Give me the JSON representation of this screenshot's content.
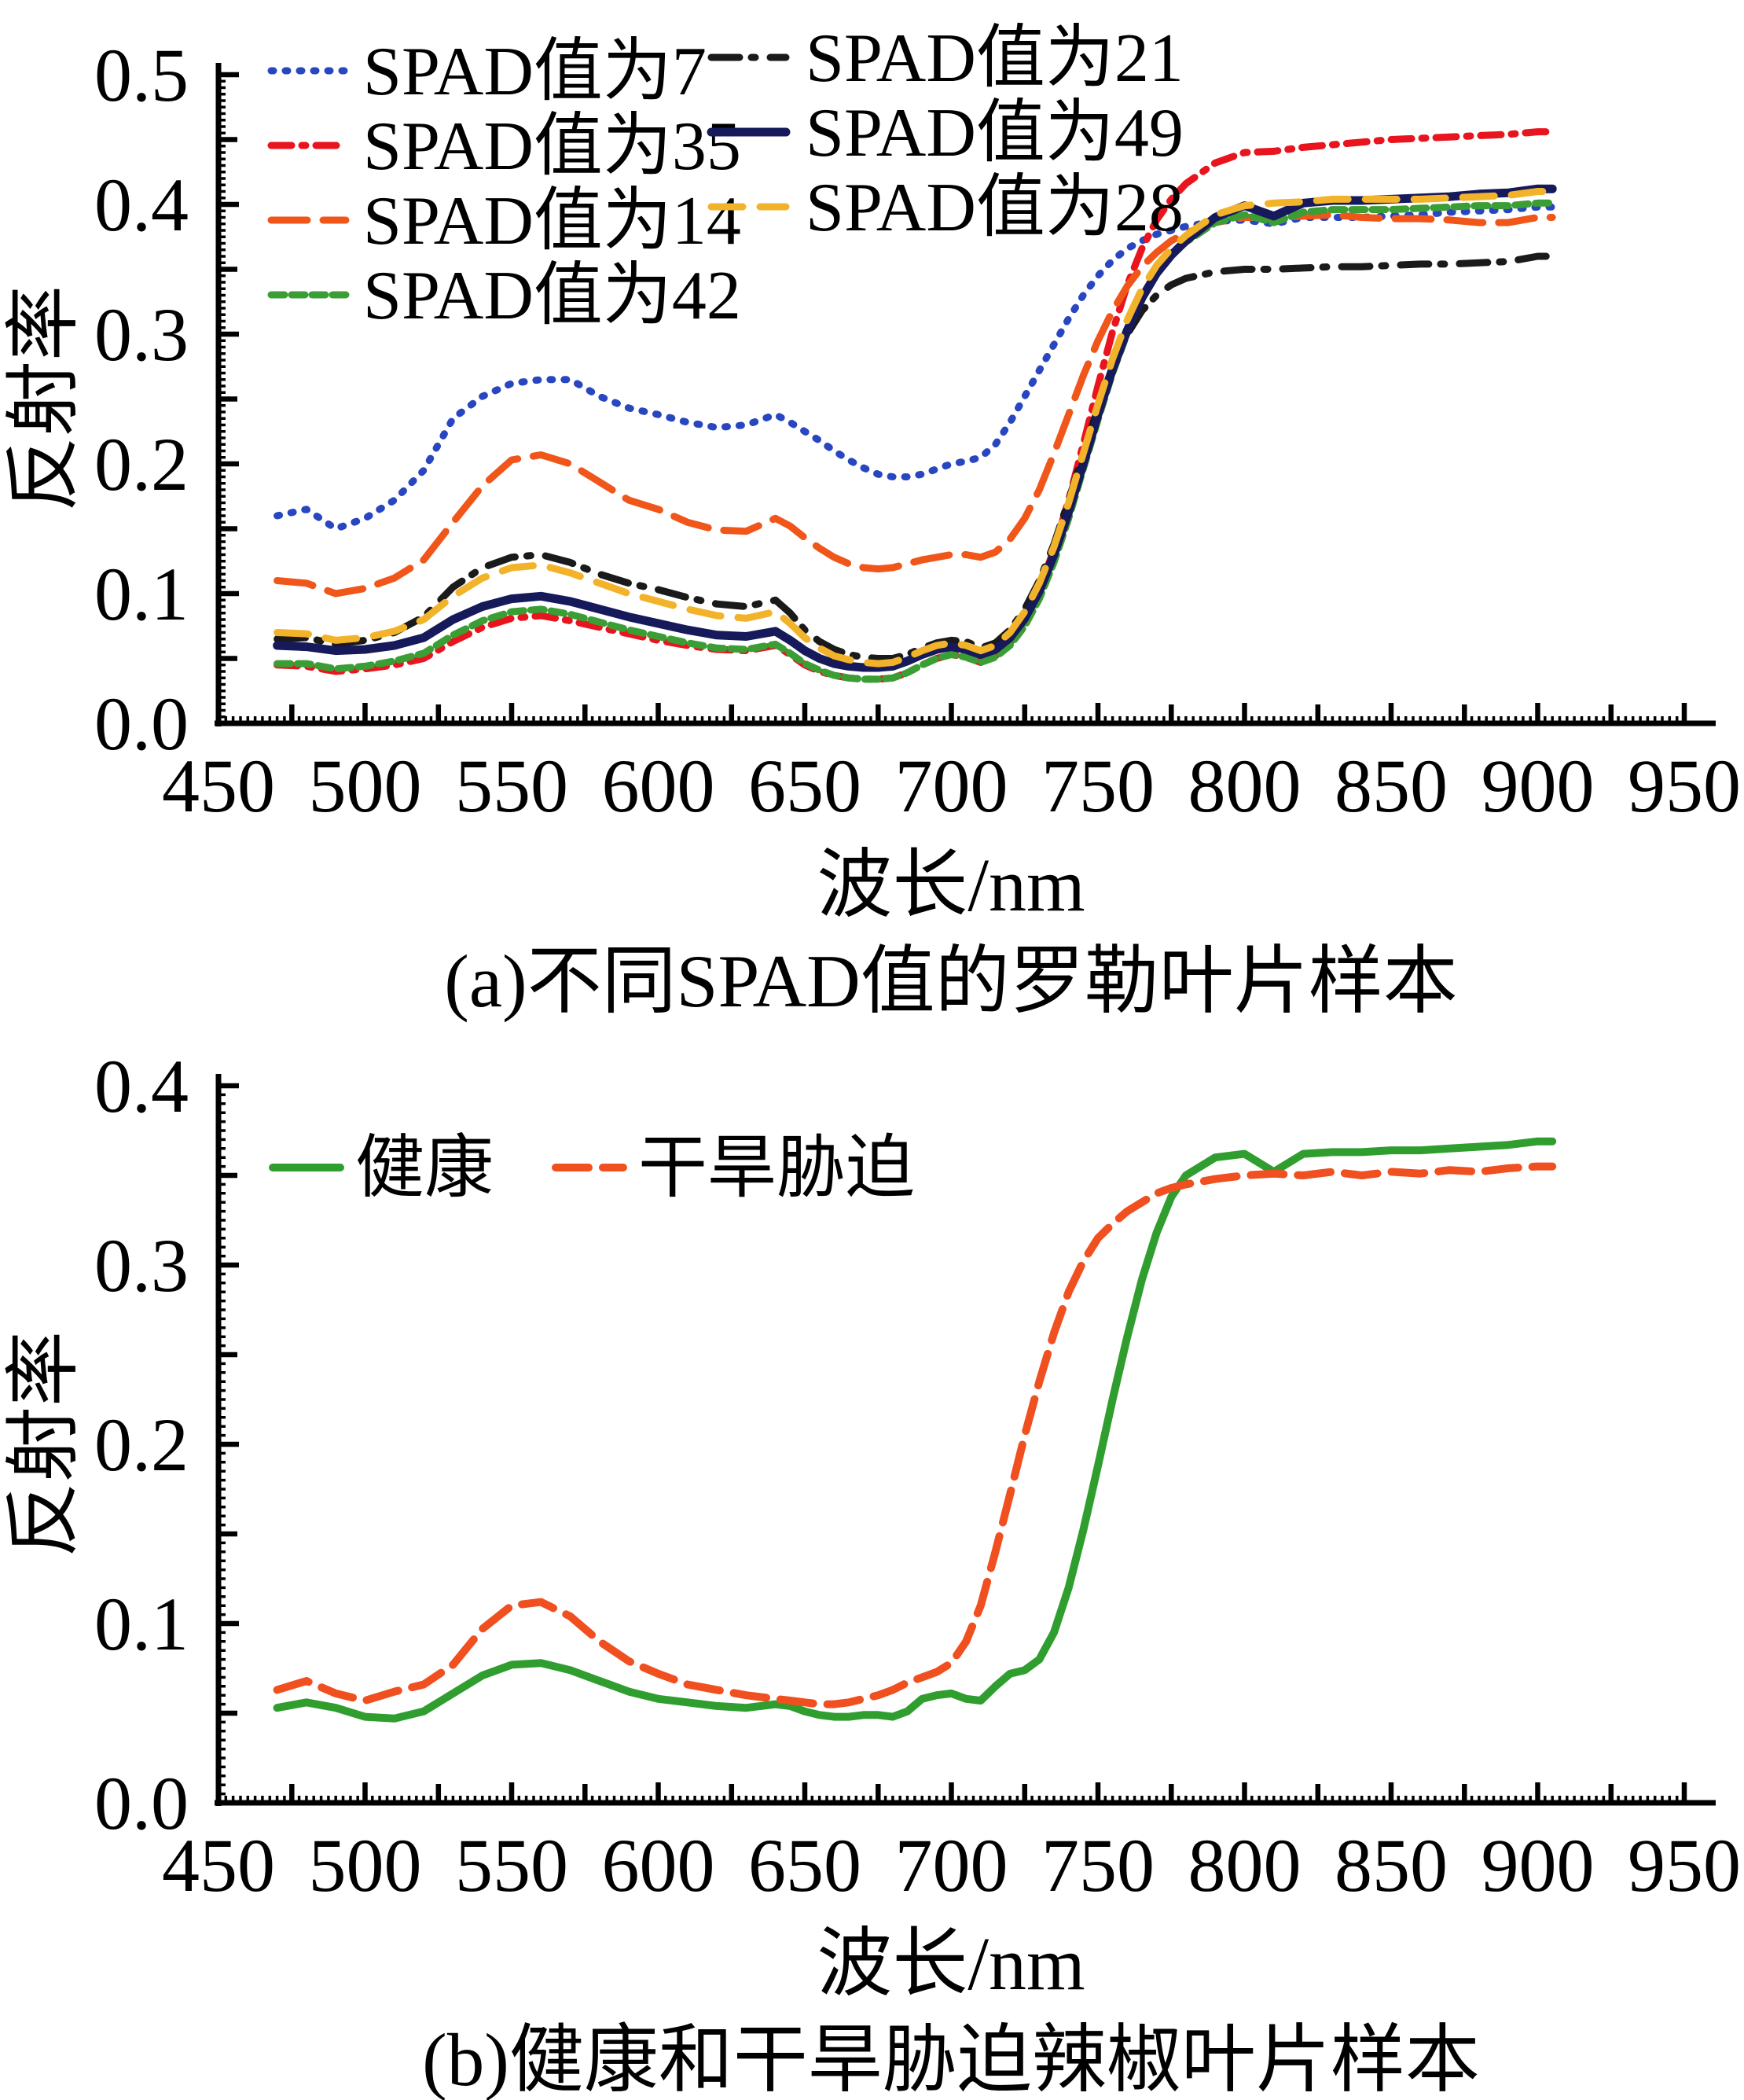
{
  "figure": {
    "background": "#ffffff",
    "axis_color": "#000000"
  },
  "chart_data": [
    {
      "type": "line",
      "title": "(a)不同SPAD值的罗勒叶片样本",
      "caption": "(a)不同SPAD值的罗勒叶片样本",
      "xlabel": "波长/nm",
      "ylabel": "反射率",
      "xlim": [
        450,
        950
      ],
      "ylim": [
        0.0,
        0.5
      ],
      "grid": false,
      "legend_position": "top-left-inside, two columns",
      "x_ticks": [
        450,
        500,
        550,
        600,
        650,
        700,
        750,
        800,
        850,
        900,
        950
      ],
      "y_tick_labels": [
        "0.0",
        "0.1",
        "0.2",
        "0.3",
        "0.4",
        "0.5"
      ],
      "x": [
        470,
        480,
        490,
        500,
        510,
        520,
        530,
        540,
        550,
        560,
        570,
        580,
        590,
        600,
        610,
        620,
        630,
        640,
        645,
        650,
        655,
        660,
        665,
        670,
        675,
        680,
        685,
        690,
        695,
        700,
        705,
        710,
        715,
        720,
        725,
        730,
        735,
        740,
        745,
        750,
        755,
        760,
        765,
        770,
        775,
        780,
        790,
        800,
        810,
        820,
        830,
        840,
        850,
        860,
        870,
        880,
        890,
        900,
        905
      ],
      "series": [
        {
          "name": "SPAD值为7",
          "key": "spad-7",
          "color": "#2846c0",
          "dash": "3 15",
          "width": 9,
          "values": [
            0.16,
            0.165,
            0.15,
            0.158,
            0.172,
            0.195,
            0.235,
            0.252,
            0.262,
            0.265,
            0.265,
            0.252,
            0.243,
            0.238,
            0.232,
            0.228,
            0.23,
            0.238,
            0.232,
            0.225,
            0.218,
            0.21,
            0.203,
            0.197,
            0.192,
            0.19,
            0.19,
            0.192,
            0.196,
            0.2,
            0.202,
            0.205,
            0.215,
            0.232,
            0.252,
            0.272,
            0.292,
            0.312,
            0.33,
            0.345,
            0.357,
            0.366,
            0.372,
            0.377,
            0.38,
            0.383,
            0.387,
            0.388,
            0.385,
            0.39,
            0.39,
            0.39,
            0.391,
            0.392,
            0.394,
            0.395,
            0.396,
            0.398,
            0.398
          ]
        },
        {
          "name": "SPAD值为35",
          "key": "spad-35",
          "color": "#e8141e",
          "dash": "26 13 5 13",
          "width": 9,
          "values": [
            0.045,
            0.044,
            0.04,
            0.042,
            0.045,
            0.05,
            0.063,
            0.074,
            0.081,
            0.083,
            0.079,
            0.074,
            0.069,
            0.064,
            0.06,
            0.057,
            0.056,
            0.06,
            0.053,
            0.045,
            0.04,
            0.037,
            0.035,
            0.034,
            0.034,
            0.035,
            0.039,
            0.045,
            0.05,
            0.053,
            0.051,
            0.047,
            0.052,
            0.062,
            0.079,
            0.103,
            0.134,
            0.172,
            0.215,
            0.26,
            0.302,
            0.338,
            0.366,
            0.388,
            0.404,
            0.416,
            0.432,
            0.44,
            0.441,
            0.444,
            0.446,
            0.448,
            0.45,
            0.451,
            0.452,
            0.453,
            0.454,
            0.456,
            0.456
          ]
        },
        {
          "name": "SPAD值为14",
          "key": "spad-14",
          "color": "#f0561a",
          "dash": "46 20",
          "width": 9,
          "values": [
            0.11,
            0.108,
            0.1,
            0.104,
            0.112,
            0.126,
            0.155,
            0.183,
            0.203,
            0.207,
            0.2,
            0.186,
            0.172,
            0.165,
            0.155,
            0.149,
            0.148,
            0.158,
            0.152,
            0.143,
            0.135,
            0.128,
            0.123,
            0.12,
            0.119,
            0.12,
            0.123,
            0.126,
            0.128,
            0.13,
            0.13,
            0.128,
            0.132,
            0.142,
            0.158,
            0.18,
            0.208,
            0.238,
            0.268,
            0.295,
            0.318,
            0.337,
            0.352,
            0.363,
            0.372,
            0.378,
            0.386,
            0.39,
            0.39,
            0.391,
            0.392,
            0.39,
            0.389,
            0.389,
            0.388,
            0.386,
            0.386,
            0.39,
            0.39
          ]
        },
        {
          "name": "SPAD值为42",
          "key": "spad-42",
          "color": "#3a9e35",
          "dash": "17 9",
          "width": 9,
          "values": [
            0.046,
            0.046,
            0.042,
            0.044,
            0.048,
            0.054,
            0.068,
            0.079,
            0.086,
            0.088,
            0.084,
            0.078,
            0.072,
            0.067,
            0.062,
            0.058,
            0.057,
            0.061,
            0.054,
            0.046,
            0.041,
            0.037,
            0.035,
            0.034,
            0.034,
            0.035,
            0.039,
            0.045,
            0.05,
            0.053,
            0.051,
            0.047,
            0.051,
            0.06,
            0.075,
            0.096,
            0.124,
            0.158,
            0.196,
            0.234,
            0.27,
            0.301,
            0.327,
            0.347,
            0.361,
            0.371,
            0.386,
            0.392,
            0.386,
            0.394,
            0.396,
            0.396,
            0.396,
            0.397,
            0.398,
            0.399,
            0.399,
            0.401,
            0.401
          ]
        },
        {
          "name": "SPAD值为21",
          "key": "spad-21",
          "color": "#1a1a1a",
          "dash": "36 15 5 19",
          "width": 9,
          "values": [
            0.065,
            0.066,
            0.061,
            0.064,
            0.07,
            0.082,
            0.105,
            0.12,
            0.128,
            0.13,
            0.124,
            0.115,
            0.108,
            0.103,
            0.097,
            0.092,
            0.09,
            0.095,
            0.085,
            0.072,
            0.063,
            0.057,
            0.053,
            0.051,
            0.05,
            0.05,
            0.053,
            0.058,
            0.062,
            0.064,
            0.063,
            0.058,
            0.062,
            0.072,
            0.088,
            0.11,
            0.138,
            0.172,
            0.208,
            0.243,
            0.275,
            0.3,
            0.318,
            0.33,
            0.338,
            0.343,
            0.348,
            0.35,
            0.35,
            0.351,
            0.352,
            0.352,
            0.353,
            0.354,
            0.354,
            0.355,
            0.356,
            0.36,
            0.36
          ]
        },
        {
          "name": "SPAD值为49",
          "key": "spad-49",
          "color": "#16195a",
          "dash": "",
          "width": 11,
          "values": [
            0.06,
            0.059,
            0.056,
            0.057,
            0.06,
            0.066,
            0.08,
            0.09,
            0.096,
            0.098,
            0.094,
            0.088,
            0.082,
            0.077,
            0.072,
            0.068,
            0.067,
            0.071,
            0.064,
            0.056,
            0.05,
            0.046,
            0.044,
            0.043,
            0.043,
            0.044,
            0.048,
            0.053,
            0.057,
            0.059,
            0.057,
            0.053,
            0.057,
            0.066,
            0.081,
            0.102,
            0.13,
            0.163,
            0.2,
            0.238,
            0.273,
            0.303,
            0.328,
            0.347,
            0.361,
            0.372,
            0.39,
            0.399,
            0.391,
            0.401,
            0.403,
            0.403,
            0.404,
            0.405,
            0.406,
            0.408,
            0.409,
            0.412,
            0.412
          ]
        },
        {
          "name": "SPAD值为28",
          "key": "spad-28",
          "color": "#f2b32a",
          "dash": "40 22",
          "width": 9,
          "values": [
            0.07,
            0.069,
            0.064,
            0.066,
            0.071,
            0.08,
            0.098,
            0.112,
            0.12,
            0.122,
            0.116,
            0.108,
            0.1,
            0.094,
            0.088,
            0.083,
            0.081,
            0.086,
            0.077,
            0.066,
            0.058,
            0.052,
            0.049,
            0.047,
            0.046,
            0.047,
            0.051,
            0.056,
            0.06,
            0.062,
            0.06,
            0.056,
            0.06,
            0.07,
            0.086,
            0.108,
            0.136,
            0.17,
            0.208,
            0.246,
            0.281,
            0.311,
            0.335,
            0.353,
            0.366,
            0.376,
            0.392,
            0.399,
            0.401,
            0.402,
            0.404,
            0.404,
            0.404,
            0.404,
            0.405,
            0.406,
            0.407,
            0.41,
            0.41
          ]
        }
      ]
    },
    {
      "type": "line",
      "title": "(b)健康和干旱胁迫辣椒叶片样本",
      "caption": "(b)健康和干旱胁迫辣椒叶片样本",
      "xlabel": "波长/nm",
      "ylabel": "反射率",
      "xlim": [
        450,
        950
      ],
      "ylim": [
        0.0,
        0.4
      ],
      "grid": false,
      "legend_position": "top-left-inside, single row",
      "x_ticks": [
        450,
        500,
        550,
        600,
        650,
        700,
        750,
        800,
        850,
        900,
        950
      ],
      "y_tick_labels": [
        "0.0",
        "0.1",
        "0.2",
        "0.3",
        "0.4"
      ],
      "x": [
        470,
        480,
        490,
        500,
        510,
        520,
        530,
        540,
        550,
        560,
        570,
        580,
        590,
        600,
        610,
        620,
        630,
        640,
        645,
        650,
        655,
        660,
        665,
        670,
        675,
        680,
        685,
        690,
        695,
        700,
        705,
        710,
        715,
        720,
        725,
        730,
        735,
        740,
        745,
        750,
        755,
        760,
        765,
        770,
        775,
        780,
        790,
        800,
        810,
        820,
        830,
        840,
        850,
        860,
        870,
        880,
        890,
        900,
        905
      ],
      "series": [
        {
          "name": "健康",
          "key": "healthy",
          "color": "#2f9e2f",
          "dash": "",
          "width": 10,
          "values": [
            0.053,
            0.056,
            0.053,
            0.048,
            0.047,
            0.051,
            0.061,
            0.071,
            0.077,
            0.078,
            0.074,
            0.068,
            0.062,
            0.058,
            0.056,
            0.054,
            0.053,
            0.055,
            0.054,
            0.051,
            0.049,
            0.048,
            0.048,
            0.049,
            0.049,
            0.048,
            0.051,
            0.058,
            0.06,
            0.061,
            0.058,
            0.057,
            0.065,
            0.072,
            0.074,
            0.08,
            0.095,
            0.12,
            0.152,
            0.188,
            0.225,
            0.26,
            0.292,
            0.318,
            0.338,
            0.35,
            0.36,
            0.362,
            0.352,
            0.362,
            0.363,
            0.363,
            0.364,
            0.364,
            0.365,
            0.366,
            0.367,
            0.369,
            0.369
          ]
        },
        {
          "name": "干旱胁迫",
          "key": "drought",
          "color": "#f04f1f",
          "dash": "42 18",
          "width": 10,
          "values": [
            0.063,
            0.068,
            0.061,
            0.057,
            0.062,
            0.066,
            0.077,
            0.097,
            0.11,
            0.112,
            0.104,
            0.09,
            0.079,
            0.072,
            0.066,
            0.063,
            0.06,
            0.058,
            0.057,
            0.056,
            0.055,
            0.055,
            0.056,
            0.058,
            0.06,
            0.063,
            0.067,
            0.07,
            0.073,
            0.078,
            0.09,
            0.11,
            0.14,
            0.172,
            0.205,
            0.235,
            0.262,
            0.285,
            0.302,
            0.315,
            0.323,
            0.33,
            0.335,
            0.34,
            0.343,
            0.345,
            0.348,
            0.35,
            0.351,
            0.35,
            0.352,
            0.35,
            0.352,
            0.351,
            0.353,
            0.352,
            0.354,
            0.355,
            0.355
          ]
        }
      ]
    }
  ]
}
